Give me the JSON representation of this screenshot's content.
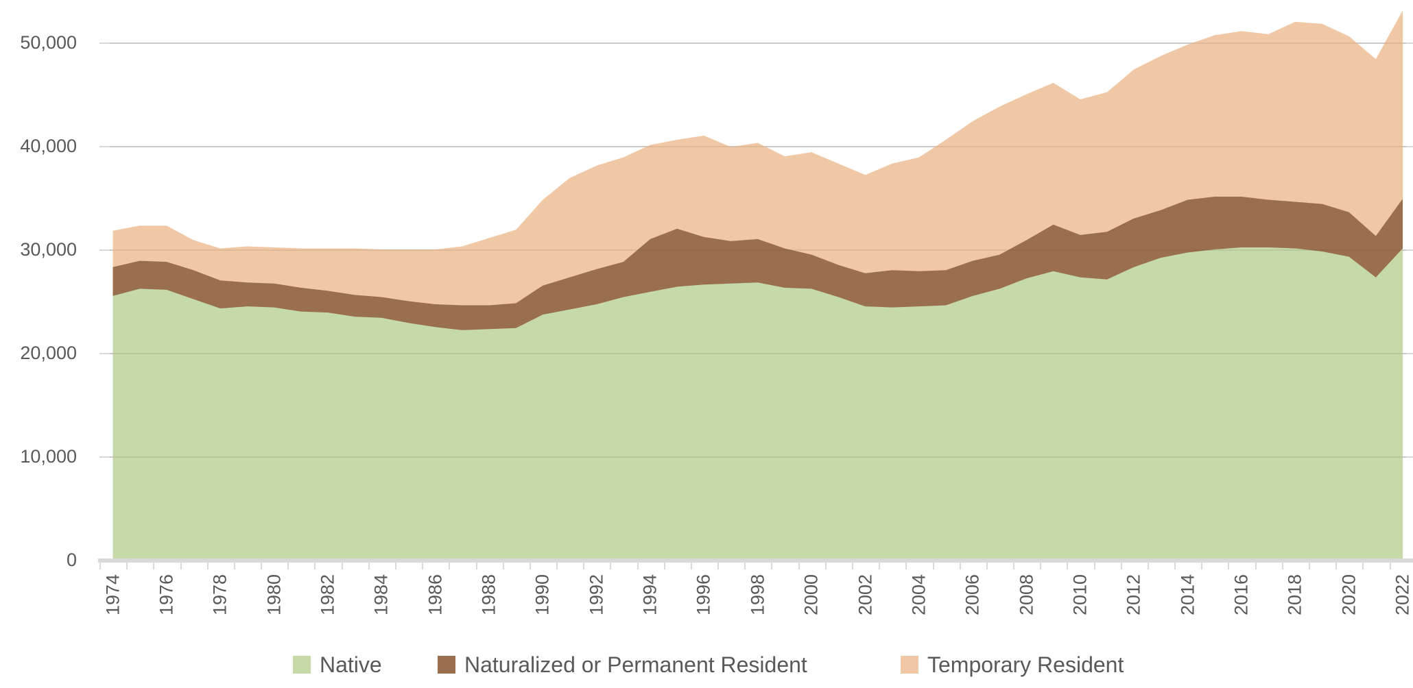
{
  "chart_data": {
    "type": "area",
    "stacked": true,
    "title": "",
    "xlabel": "",
    "ylabel": "",
    "background_color": "#ffffff",
    "text_color": "#595959",
    "gridline_color": "#d9d9d9",
    "grid": true,
    "legend_position": "bottom",
    "ylim": [
      0,
      54000
    ],
    "categories": [
      1974,
      1975,
      1976,
      1977,
      1978,
      1979,
      1980,
      1981,
      1982,
      1983,
      1984,
      1985,
      1986,
      1987,
      1988,
      1989,
      1990,
      1991,
      1992,
      1993,
      1994,
      1995,
      1996,
      1997,
      1998,
      1999,
      2000,
      2001,
      2002,
      2003,
      2004,
      2005,
      2006,
      2007,
      2008,
      2009,
      2010,
      2011,
      2012,
      2013,
      2014,
      2015,
      2016,
      2017,
      2018,
      2019,
      2020,
      2021,
      2022
    ],
    "x_tick_labels": [
      "1974",
      "1976",
      "1978",
      "1980",
      "1982",
      "1984",
      "1986",
      "1988",
      "1990",
      "1992",
      "1994",
      "1996",
      "1998",
      "2000",
      "2002",
      "2004",
      "2006",
      "2008",
      "2010",
      "2012",
      "2014",
      "2016",
      "2018",
      "2020",
      "2022"
    ],
    "y_ticks": [
      {
        "label": "0",
        "value": 0
      },
      {
        "label": "10,000",
        "value": 10000
      },
      {
        "label": "20,000",
        "value": 20000
      },
      {
        "label": "30,000",
        "value": 30000
      },
      {
        "label": "40,000",
        "value": 40000
      },
      {
        "label": "50,000",
        "value": 50000
      }
    ],
    "series": [
      {
        "name": "Native",
        "color": "#c5d9a9",
        "values": [
          25500,
          26200,
          26100,
          25200,
          24300,
          24500,
          24400,
          24000,
          23900,
          23500,
          23400,
          22900,
          22500,
          22200,
          22300,
          22400,
          23700,
          24200,
          24700,
          25400,
          25900,
          26400,
          26600,
          26700,
          26800,
          26300,
          26200,
          25400,
          24500,
          24400,
          24500,
          24600,
          25500,
          26200,
          27200,
          27900,
          27300,
          27100,
          28300,
          29200,
          29700,
          30000,
          30200,
          30200,
          30100,
          29800,
          29300,
          27300,
          30100
        ]
      },
      {
        "name": "Naturalized or Permanent Resident",
        "color": "#9a6f4d",
        "values": [
          2800,
          2700,
          2700,
          2800,
          2700,
          2300,
          2300,
          2300,
          2100,
          2100,
          2000,
          2100,
          2200,
          2400,
          2300,
          2400,
          2800,
          3100,
          3400,
          3400,
          5100,
          5600,
          4600,
          4100,
          4200,
          3800,
          3300,
          3100,
          3200,
          3600,
          3400,
          3400,
          3400,
          3300,
          3700,
          4500,
          4100,
          4600,
          4700,
          4600,
          5100,
          5100,
          4900,
          4600,
          4500,
          4600,
          4300,
          4000,
          4800
        ]
      },
      {
        "name": "Temporary Resident",
        "color": "#f1c8a6",
        "values": [
          3500,
          3400,
          3500,
          2900,
          3100,
          3500,
          3500,
          3800,
          4100,
          4500,
          4600,
          5000,
          5300,
          5700,
          6500,
          7100,
          8300,
          9600,
          10000,
          10100,
          9100,
          8600,
          9800,
          9100,
          9300,
          8900,
          9900,
          9800,
          9500,
          10300,
          11000,
          12600,
          13500,
          14300,
          14100,
          13700,
          13100,
          13500,
          14400,
          14900,
          15000,
          15600,
          16000,
          16000,
          17400,
          17400,
          17000,
          17100,
          18200
        ]
      }
    ],
    "legend": [
      {
        "label": "Native",
        "color": "#c5d9a9"
      },
      {
        "label": "Naturalized or Permanent Resident",
        "color": "#9a6f4d"
      },
      {
        "label": "Temporary Resident",
        "color": "#f1c8a6"
      }
    ]
  }
}
